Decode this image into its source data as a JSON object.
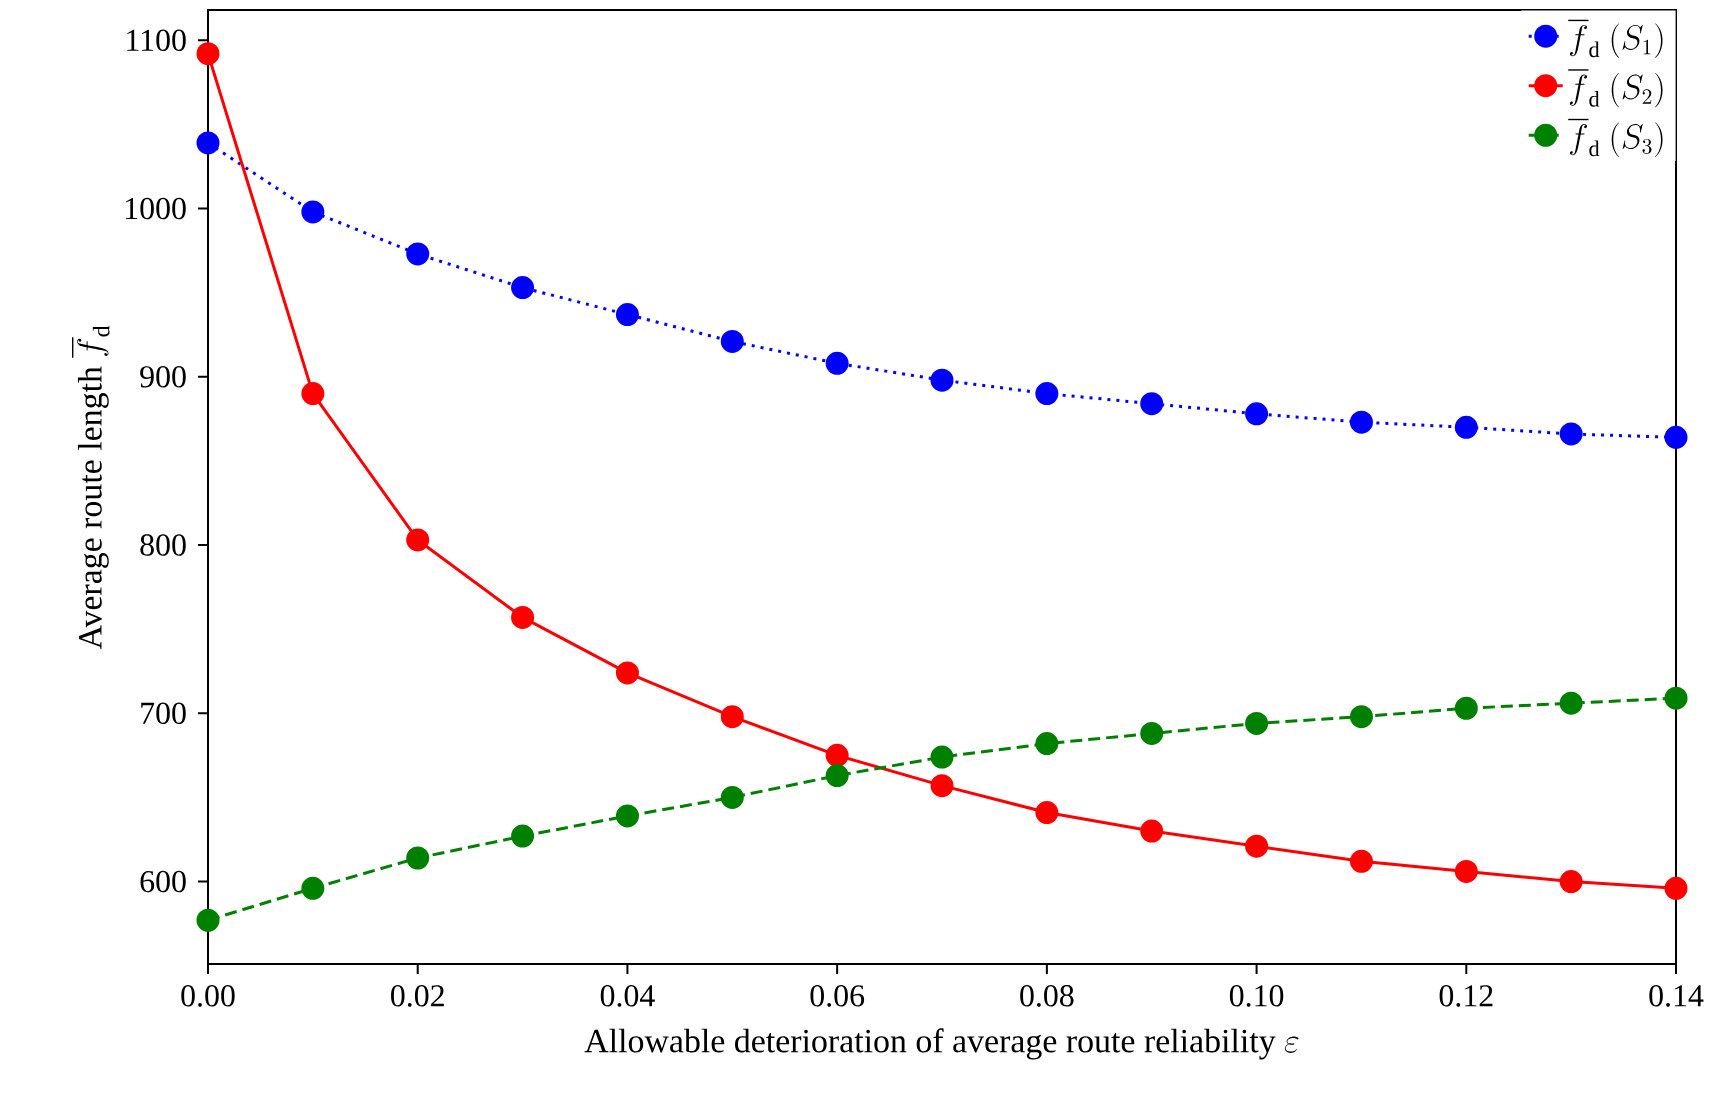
{
  "chart_data": {
    "type": "line",
    "xlabel": "\\text{Allowable deterioration of average route reliability }\\varepsilon",
    "ylabel": "\\text{Average route length }\\overline{f}_{\\mathrm{d}}",
    "x": [
      0,
      0.01,
      0.02,
      0.03,
      0.04,
      0.05,
      0.06,
      0.07,
      0.08,
      0.09,
      0.1,
      0.11,
      0.12,
      0.13,
      0.14
    ],
    "series": [
      {
        "name": "\\overline{f}_{\\mathrm{d}}\\ (S_1)",
        "color": "#0000ff",
        "line_style": "dotted",
        "values": [
          1039,
          998,
          973,
          953,
          937,
          921,
          908,
          898,
          890,
          884,
          878,
          873,
          870,
          866,
          864
        ]
      },
      {
        "name": "\\overline{f}_{\\mathrm{d}}\\ (S_2)",
        "color": "#ff0000",
        "line_style": "solid",
        "values": [
          1092,
          890,
          803,
          757,
          724,
          698,
          675,
          657,
          641,
          630,
          621,
          612,
          606,
          600,
          596
        ]
      },
      {
        "name": "\\overline{f}_{\\mathrm{d}}\\ (S_3)",
        "color": "#008000",
        "line_style": "dashed",
        "values": [
          577,
          596,
          614,
          627,
          639,
          650,
          663,
          674,
          682,
          688,
          694,
          698,
          703,
          706,
          709
        ]
      }
    ],
    "xlim": [
      0,
      0.14
    ],
    "ylim": [
      551,
      1118
    ],
    "xticks": [
      {
        "value": 0,
        "label": "0.00"
      },
      {
        "value": 0.02,
        "label": "0.02"
      },
      {
        "value": 0.04,
        "label": "0.04"
      },
      {
        "value": 0.06,
        "label": "0.06"
      },
      {
        "value": 0.08,
        "label": "0.08"
      },
      {
        "value": 0.1,
        "label": "0.10"
      },
      {
        "value": 0.12,
        "label": "0.12"
      },
      {
        "value": 0.14,
        "label": "0.14"
      }
    ],
    "yticks": [
      600,
      700,
      800,
      900,
      1000,
      1100
    ],
    "marker": "circle",
    "grid": false,
    "legend": "top right"
  }
}
